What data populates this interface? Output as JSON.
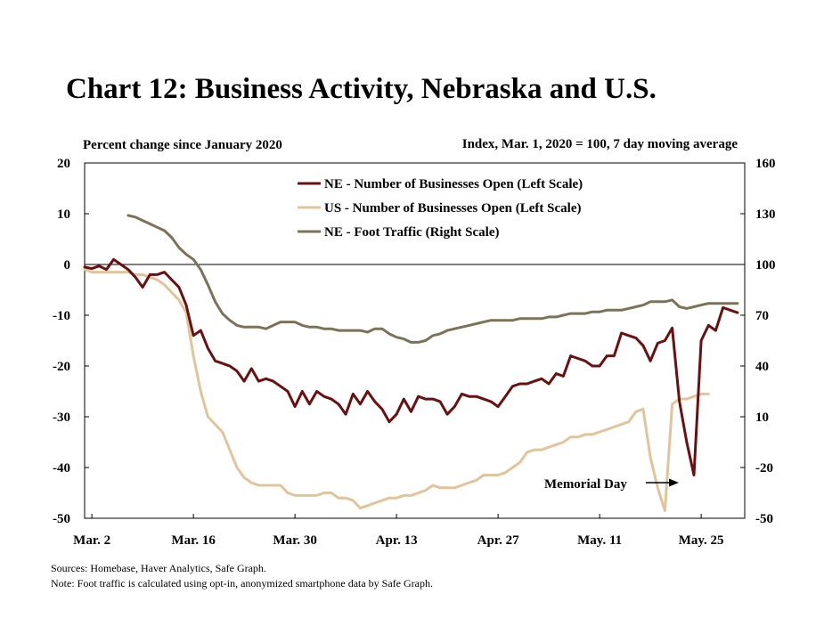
{
  "chart_data": {
    "type": "line",
    "title": "Chart 12: Business Activity, Nebraska and U.S.",
    "left_axis_label": "Percent change since January 2020",
    "right_axis_label": "Index, Mar. 1, 2020 = 100, 7 day moving average",
    "x_tick_labels": [
      "Mar. 2",
      "Mar. 16",
      "Mar. 30",
      "Apr. 13",
      "Apr. 27",
      "May. 11",
      "May. 25"
    ],
    "x_start_label": "Mar. 1",
    "x_range_days": [
      1,
      92
    ],
    "left_ylim": [
      -50,
      20
    ],
    "left_yticks": [
      20,
      10,
      0,
      -10,
      -20,
      -30,
      -40,
      -50
    ],
    "right_ylim": [
      -50,
      160
    ],
    "right_yticks": [
      160,
      130,
      100,
      70,
      40,
      10,
      -20,
      -50
    ],
    "grid": false,
    "zero_line": true,
    "legend_position": "top-center",
    "series": [
      {
        "name": "NE - Number of Businesses Open (Left Scale)",
        "axis": "left",
        "color": "#6b1010",
        "values": [
          -0.5,
          -0.8,
          -0.3,
          -1.0,
          1.0,
          0.0,
          -1.0,
          -2.5,
          -4.5,
          -2.0,
          -2.0,
          -1.5,
          -3.0,
          -4.5,
          -8.0,
          -14.0,
          -13.0,
          -16.5,
          -19.0,
          -19.5,
          -20.0,
          -21.0,
          -23.0,
          -20.5,
          -23.0,
          -22.5,
          -23.0,
          -24.0,
          -25.0,
          -28.0,
          -25.0,
          -27.5,
          -25.0,
          -26.0,
          -26.5,
          -27.5,
          -29.5,
          -25.5,
          -27.5,
          -25.0,
          -27.0,
          -28.5,
          -31.0,
          -29.5,
          -26.5,
          -29.0,
          -26.0,
          -26.5,
          -26.5,
          -27.0,
          -29.5,
          -28.0,
          -25.5,
          -26.0,
          -26.0,
          -26.5,
          -27.0,
          -28.0,
          -26.0,
          -24.0,
          -23.5,
          -23.5,
          -23.0,
          -22.5,
          -23.5,
          -21.5,
          -22.0,
          -18.0,
          -18.5,
          -19.0,
          -20.0,
          -20.0,
          -18.0,
          -18.0,
          -13.5,
          -14.0,
          -14.5,
          -16.0,
          -19.0,
          -15.5,
          -15.0,
          -12.5,
          -27.0,
          -35.0,
          -41.5,
          -15.0,
          -12.0,
          -13.0,
          -8.5,
          -9.0,
          -9.5
        ]
      },
      {
        "name": "US - Number of Businesses Open (Left Scale)",
        "axis": "left",
        "color": "#e2c49a",
        "values": [
          -1.0,
          -1.5,
          -1.5,
          -1.5,
          -1.5,
          -1.5,
          -1.5,
          -2.0,
          -2.0,
          -2.5,
          -3.0,
          -4.0,
          -5.5,
          -7.0,
          -9.5,
          -18.0,
          -25.0,
          -30.0,
          -31.5,
          -33.0,
          -36.5,
          -40.0,
          -42.0,
          -43.0,
          -43.5,
          -43.5,
          -43.5,
          -43.5,
          -45.0,
          -45.5,
          -45.5,
          -45.5,
          -45.5,
          -45.0,
          -45.0,
          -46.0,
          -46.0,
          -46.5,
          -48.0,
          -47.5,
          -47.0,
          -46.5,
          -46.0,
          -46.0,
          -45.5,
          -45.5,
          -45.0,
          -44.5,
          -43.5,
          -44.0,
          -44.0,
          -44.0,
          -43.5,
          -43.0,
          -42.5,
          -41.5,
          -41.5,
          -41.5,
          -41.0,
          -40.0,
          -39.0,
          -37.0,
          -36.5,
          -36.5,
          -36.0,
          -35.5,
          -35.0,
          -34.0,
          -34.0,
          -33.5,
          -33.5,
          -33.0,
          -32.5,
          -32.0,
          -31.5,
          -31.0,
          -29.0,
          -28.5,
          -38.0,
          -44.0,
          -48.5,
          -27.5,
          -26.5,
          -26.5,
          -26.0,
          -25.5,
          -25.5
        ]
      },
      {
        "name": "NE - Foot Traffic (Right Scale)",
        "axis": "right",
        "color": "#7b7257",
        "start_day": 7,
        "values": [
          129,
          128,
          126,
          124,
          122,
          120,
          116,
          110,
          106,
          103,
          97,
          88,
          78,
          71,
          67,
          64,
          63,
          63,
          63,
          62,
          64,
          66,
          66,
          66,
          64,
          63,
          63,
          62,
          62,
          61,
          61,
          61,
          61,
          60,
          62,
          62,
          59,
          57,
          56,
          54,
          54,
          55,
          58,
          59,
          61,
          62,
          63,
          64,
          65,
          66,
          67,
          67,
          67,
          67,
          68,
          68,
          68,
          68,
          69,
          69,
          70,
          71,
          71,
          71,
          72,
          72,
          73,
          73,
          73,
          74,
          75,
          76,
          78,
          78,
          78,
          79,
          75,
          74,
          75,
          76,
          77,
          77,
          77,
          77,
          77
        ]
      }
    ],
    "annotation": "Memorial Day"
  },
  "notes": {
    "sources": "Sources: Homebase, Haver Analytics, Safe Graph.",
    "footnote": "Note: Foot traffic is calculated using opt-in, anonymized smartphone data by Safe Graph."
  }
}
